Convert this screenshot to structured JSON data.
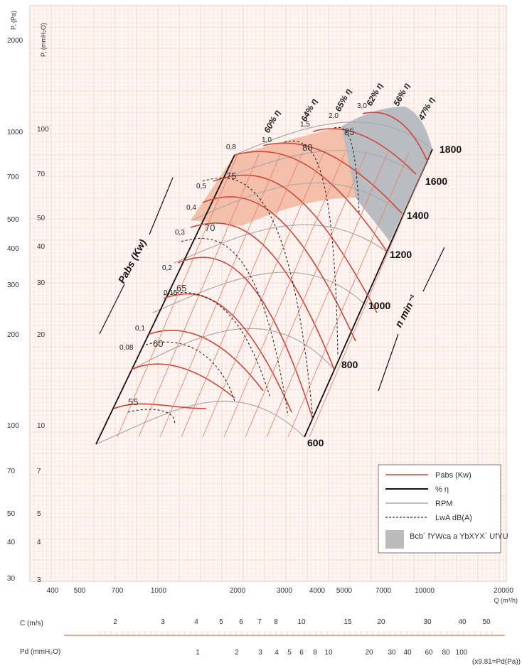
{
  "chart_data": {
    "type": "line",
    "x_axis": {
      "label": "Q (m³/h)",
      "scale": "log",
      "ticks": [
        "400",
        "500",
        "700",
        "1000",
        "2000",
        "3000",
        "4000",
        "5000",
        "7000",
        "10000",
        "20000"
      ]
    },
    "y_axis_left": {
      "label": "P, (Pa)",
      "scale": "log",
      "ticks": [
        "2000",
        "1000",
        "700",
        "500",
        "400",
        "300",
        "200",
        "100",
        "70",
        "50",
        "40",
        "30"
      ]
    },
    "y_axis_inner": {
      "label": "P, (mmH₂O)",
      "ticks": [
        "100",
        "70",
        "50",
        "40",
        "30",
        "20",
        "10",
        "7",
        "5",
        "4",
        "3"
      ]
    },
    "velocity_scale": {
      "label": "C (m/s)",
      "ticks": [
        "2",
        "3",
        "4",
        "5",
        "6",
        "7",
        "8",
        "10",
        "15",
        "20",
        "30",
        "40",
        "50"
      ]
    },
    "pd_scale": {
      "label": "Pd (mmH₂O)",
      "ticks": [
        "1",
        "2",
        "3",
        "4",
        "5",
        "6",
        "8",
        "10",
        "20",
        "30",
        "40",
        "60",
        "80",
        "100"
      ],
      "note": "(x9.81=Pd(Pa))"
    },
    "rpm_lines": [
      "600",
      "800",
      "1000",
      "1200",
      "1400",
      "1600",
      "1800"
    ],
    "rpm_axis_label": "n   min⁻¹",
    "power_axis_label": "Pabs (Kw)",
    "power_values": [
      "0,08",
      "0,1",
      "0,15",
      "0,2",
      "0,3",
      "0,4",
      "0,5",
      "0,8",
      "1,0",
      "1,5",
      "2,0",
      "3,0"
    ],
    "efficiency_values": [
      "60% η",
      "64% η",
      "65% η",
      "62% η",
      "56% η",
      "47% η"
    ],
    "sound_values": [
      "55",
      "60",
      "65",
      "70",
      "75",
      "80",
      "85"
    ],
    "legend": [
      {
        "label": "Pabs (Kw)",
        "style": "power",
        "color": "#d0453a"
      },
      {
        "label": "% η",
        "style": "efficiency",
        "color": "#111111"
      },
      {
        "label": "RPM",
        "style": "rpm",
        "color": "#aaaaaa"
      },
      {
        "label": "LwA dB(A)",
        "style": "sound",
        "color": "#222222"
      },
      {
        "label": "Bcb` fYWca a YbXYX` UfYU",
        "style": "zone",
        "color": "#bbbbbb"
      }
    ],
    "zone_colors": {
      "optimal": "#f3b9a2",
      "grey": "#b9bcc0",
      "grid": "#f6d6ce"
    }
  }
}
